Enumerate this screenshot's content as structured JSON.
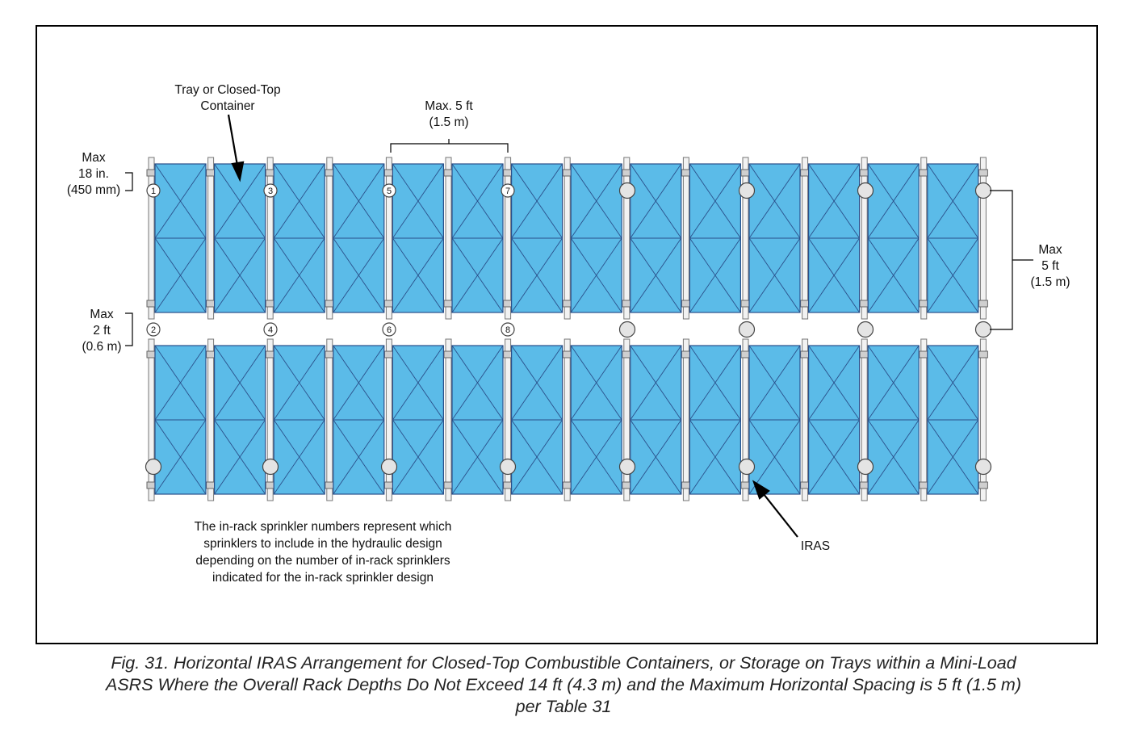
{
  "labels": {
    "container": "Tray or Closed-Top\nContainer",
    "spacing_top": "Max. 5 ft\n(1.5 m)",
    "max18": "Max\n18 in.\n(450 mm)",
    "max2": "Max\n2 ft\n(0.6 m)",
    "max5_right": "Max\n5 ft\n(1.5 m)",
    "note": "The in-rack sprinkler numbers represent which\nsprinklers to include in the hydraulic design\ndepending on the number of in-rack sprinklers\nindicated for the in-rack sprinkler design",
    "iras": "IRAS"
  },
  "sprinkler_numbers_top": [
    "1",
    "3",
    "5",
    "7"
  ],
  "sprinkler_numbers_mid": [
    "2",
    "4",
    "6",
    "8"
  ],
  "caption": "Fig. 31. Horizontal IRAS Arrangement for Closed-Top Combustible Containers, or Storage on Trays within a Mini-Load\nASRS Where the Overall Rack Depths Do Not Exceed 14 ft (4.3 m) and the Maximum Horizontal Spacing is 5 ft (1.5 m)\nper Table 31",
  "colors": {
    "container_fill": "#5bbbe8",
    "container_line": "#2a4f8a",
    "sprinkler_fill": "#e4e4e4"
  }
}
